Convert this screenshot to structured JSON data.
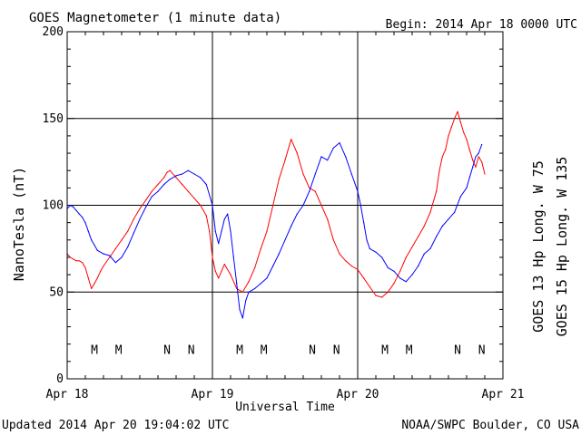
{
  "header": {
    "title": "GOES Magnetometer (1 minute data)",
    "begin": "Begin:  2014 Apr 18 0000 UTC"
  },
  "footer": {
    "updated": "Updated 2014 Apr 20 19:04:02 UTC",
    "credit": "NOAA/SWPC Boulder, CO USA"
  },
  "colors": {
    "goes13": "#ff0000",
    "goes15": "#0000ff",
    "grid": "#000000"
  },
  "chart_data": {
    "type": "line",
    "title": "GOES Magnetometer (1 minute data)",
    "xlabel": "Universal Time",
    "ylabel": "NanoTesla (nT)",
    "xlim": [
      0,
      72
    ],
    "ylim": [
      0,
      200
    ],
    "grid": true,
    "x_ticks": [
      {
        "x": 0,
        "label": "Apr 18"
      },
      {
        "x": 24,
        "label": "Apr 19"
      },
      {
        "x": 48,
        "label": "Apr 20"
      },
      {
        "x": 72,
        "label": "Apr 21"
      }
    ],
    "y_ticks": [
      0,
      50,
      100,
      150,
      200
    ],
    "legend": {
      "placement": "right (vertical)",
      "entries": [
        {
          "series": "GOES 13 Hp",
          "text": "GOES 13 Hp  Long. W 75",
          "color": "#ff0000"
        },
        {
          "series": "GOES 15 Hp",
          "text": "GOES 15 Hp  Long. W 135",
          "color": "#0000ff"
        }
      ]
    },
    "series": [
      {
        "name": "GOES 13 Hp",
        "color": "#ff0000",
        "x": [
          0,
          0.5,
          1,
          1.5,
          2,
          2.5,
          3,
          3.5,
          4,
          4.5,
          5,
          5.5,
          6,
          7,
          8,
          9,
          10,
          11,
          12,
          13,
          14,
          15,
          16,
          16.5,
          17,
          18,
          19,
          20,
          21,
          22,
          23,
          23.5,
          24,
          24.5,
          25,
          25.5,
          26,
          27,
          28,
          29,
          30,
          31,
          32,
          33,
          34,
          35,
          36,
          37,
          38,
          39,
          40,
          41,
          42,
          43,
          44,
          45,
          46,
          47,
          48,
          49,
          50,
          51,
          52,
          53,
          54,
          55,
          56,
          57,
          58,
          59,
          60,
          61,
          61.5,
          62,
          62.5,
          63,
          63.5,
          64,
          64.5,
          65,
          65.5,
          66,
          66.5,
          67,
          67.5,
          68,
          68.5,
          69
        ],
        "y": [
          72,
          70,
          69,
          68,
          68,
          67,
          64,
          58,
          52,
          55,
          58,
          62,
          65,
          70,
          75,
          80,
          85,
          92,
          98,
          103,
          108,
          112,
          116,
          119,
          120,
          116,
          112,
          108,
          104,
          100,
          94,
          85,
          70,
          62,
          58,
          62,
          66,
          60,
          52,
          50,
          56,
          64,
          75,
          85,
          100,
          115,
          126,
          138,
          130,
          118,
          110,
          108,
          100,
          92,
          80,
          72,
          68,
          65,
          63,
          58,
          53,
          48,
          47,
          50,
          55,
          62,
          70,
          76,
          82,
          88,
          96,
          108,
          120,
          128,
          132,
          140,
          145,
          150,
          154,
          148,
          142,
          138,
          132,
          126,
          122,
          128,
          125,
          118
        ]
      },
      {
        "name": "GOES 15 Hp",
        "color": "#0000ff",
        "x": [
          0,
          0.5,
          1,
          1.5,
          2,
          2.5,
          3,
          3.5,
          4,
          4.5,
          5,
          6,
          7,
          8,
          9,
          10,
          11,
          12,
          13,
          14,
          15,
          16,
          17,
          18,
          19,
          20,
          21,
          22,
          23,
          24,
          24.5,
          25,
          25.5,
          26,
          26.5,
          27,
          27.5,
          28,
          28.5,
          29,
          29.5,
          30,
          31,
          32,
          33,
          34,
          35,
          36,
          37,
          38,
          39,
          40,
          41,
          42,
          43,
          44,
          45,
          46,
          47,
          48,
          48.5,
          49,
          49.5,
          50,
          51,
          52,
          53,
          54,
          55,
          56,
          57,
          58,
          59,
          60,
          61,
          62,
          63,
          64,
          65,
          66,
          66.5,
          67,
          67.5,
          68,
          68.5
        ],
        "y": [
          98,
          100,
          99,
          97,
          95,
          93,
          90,
          85,
          80,
          77,
          74,
          72,
          71,
          67,
          70,
          76,
          84,
          92,
          99,
          105,
          108,
          112,
          115,
          117,
          118,
          120,
          118,
          116,
          112,
          100,
          85,
          78,
          85,
          92,
          95,
          85,
          70,
          55,
          40,
          35,
          45,
          50,
          52,
          55,
          58,
          65,
          72,
          80,
          88,
          95,
          100,
          108,
          118,
          128,
          126,
          133,
          136,
          128,
          118,
          108,
          100,
          90,
          80,
          75,
          73,
          70,
          64,
          62,
          58,
          56,
          60,
          65,
          72,
          75,
          82,
          88,
          92,
          96,
          105,
          110,
          116,
          122,
          128,
          130,
          135
        ]
      }
    ],
    "annotations": [
      {
        "x": 4.5,
        "label": "M",
        "series": "GOES 13 Hp",
        "color": "#ff0000"
      },
      {
        "x": 8.5,
        "label": "M",
        "series": "GOES 15 Hp",
        "color": "#0000ff"
      },
      {
        "x": 16.5,
        "label": "N",
        "series": "GOES 13 Hp",
        "color": "#ff0000"
      },
      {
        "x": 20.5,
        "label": "N",
        "series": "GOES 15 Hp",
        "color": "#0000ff"
      },
      {
        "x": 28.5,
        "label": "M",
        "series": "GOES 13 Hp",
        "color": "#ff0000"
      },
      {
        "x": 32.5,
        "label": "M",
        "series": "GOES 15 Hp",
        "color": "#0000ff"
      },
      {
        "x": 40.5,
        "label": "N",
        "series": "GOES 13 Hp",
        "color": "#ff0000"
      },
      {
        "x": 44.5,
        "label": "N",
        "series": "GOES 15 Hp",
        "color": "#0000ff"
      },
      {
        "x": 52.5,
        "label": "M",
        "series": "GOES 13 Hp",
        "color": "#ff0000"
      },
      {
        "x": 56.5,
        "label": "M",
        "series": "GOES 15 Hp",
        "color": "#0000ff"
      },
      {
        "x": 64.5,
        "label": "N",
        "series": "GOES 13 Hp",
        "color": "#ff0000"
      },
      {
        "x": 68.5,
        "label": "N",
        "series": "GOES 15 Hp",
        "color": "#0000ff"
      }
    ],
    "annotation_level": 17
  }
}
